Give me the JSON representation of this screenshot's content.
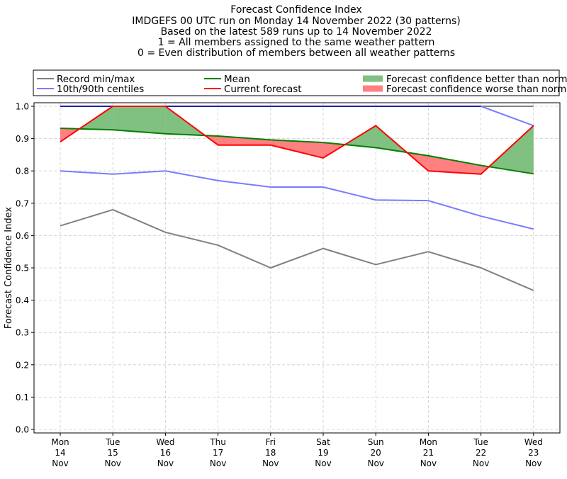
{
  "chart_data": {
    "type": "line",
    "title_lines": [
      "Forecast Confidence Index",
      "IMDGEFS 00 UTC run on Monday 14 November 2022 (30 patterns)",
      "Based on the latest 589 runs up to 14 November 2022",
      "1 = All members assigned to the same weather pattern",
      "0 = Even distribution of members between all weather patterns"
    ],
    "ylabel": "Forecast Confidence Index",
    "xlabel": "",
    "ylim": [
      0,
      1.0
    ],
    "yticks": [
      "0.0",
      "0.1",
      "0.2",
      "0.3",
      "0.4",
      "0.5",
      "0.6",
      "0.7",
      "0.8",
      "0.9",
      "1.0"
    ],
    "grid": true,
    "categories": [
      [
        "Mon",
        "14",
        "Nov"
      ],
      [
        "Tue",
        "15",
        "Nov"
      ],
      [
        "Wed",
        "16",
        "Nov"
      ],
      [
        "Thu",
        "17",
        "Nov"
      ],
      [
        "Fri",
        "18",
        "Nov"
      ],
      [
        "Sat",
        "19",
        "Nov"
      ],
      [
        "Sun",
        "20",
        "Nov"
      ],
      [
        "Mon",
        "21",
        "Nov"
      ],
      [
        "Tue",
        "22",
        "Nov"
      ],
      [
        "Wed",
        "23",
        "Nov"
      ]
    ],
    "series": {
      "record_max": [
        1.0,
        1.0,
        1.0,
        1.0,
        1.0,
        1.0,
        1.0,
        1.0,
        1.0,
        1.0
      ],
      "record_min": [
        0.63,
        0.68,
        0.61,
        0.57,
        0.5,
        0.56,
        0.51,
        0.55,
        0.5,
        0.43
      ],
      "centile_90": [
        1.0,
        1.0,
        1.0,
        1.0,
        1.0,
        1.0,
        1.0,
        1.0,
        1.0,
        0.94
      ],
      "centile_10": [
        0.8,
        0.79,
        0.8,
        0.77,
        0.75,
        0.75,
        0.71,
        0.708,
        0.66,
        0.62
      ],
      "mean": [
        0.932,
        0.927,
        0.915,
        0.908,
        0.896,
        0.888,
        0.872,
        0.847,
        0.817,
        0.791
      ],
      "current": [
        0.89,
        1.0,
        1.0,
        0.88,
        0.88,
        0.84,
        0.94,
        0.8,
        0.79,
        0.94
      ]
    },
    "legend": {
      "placement": "top",
      "entries": [
        {
          "label": "Record min/max",
          "color": "#808080",
          "kind": "line"
        },
        {
          "label": "10th/90th centiles",
          "color": "#7b7bff",
          "kind": "line"
        },
        {
          "label": "Mean",
          "color": "#008000",
          "kind": "line"
        },
        {
          "label": "Current forecast",
          "color": "#ff0000",
          "kind": "line"
        },
        {
          "label": "Forecast confidence better than normal",
          "color": "#80c080",
          "kind": "patch"
        },
        {
          "label": "Forecast confidence worse than normal",
          "color": "#ff8080",
          "kind": "patch"
        }
      ]
    },
    "colors": {
      "better": "#80c080",
      "worse": "#ff8080",
      "record": "#808080",
      "centile": "#7b7bff",
      "mean": "#008000",
      "current": "#ff0000",
      "max_overlap": "#2020b0"
    }
  }
}
